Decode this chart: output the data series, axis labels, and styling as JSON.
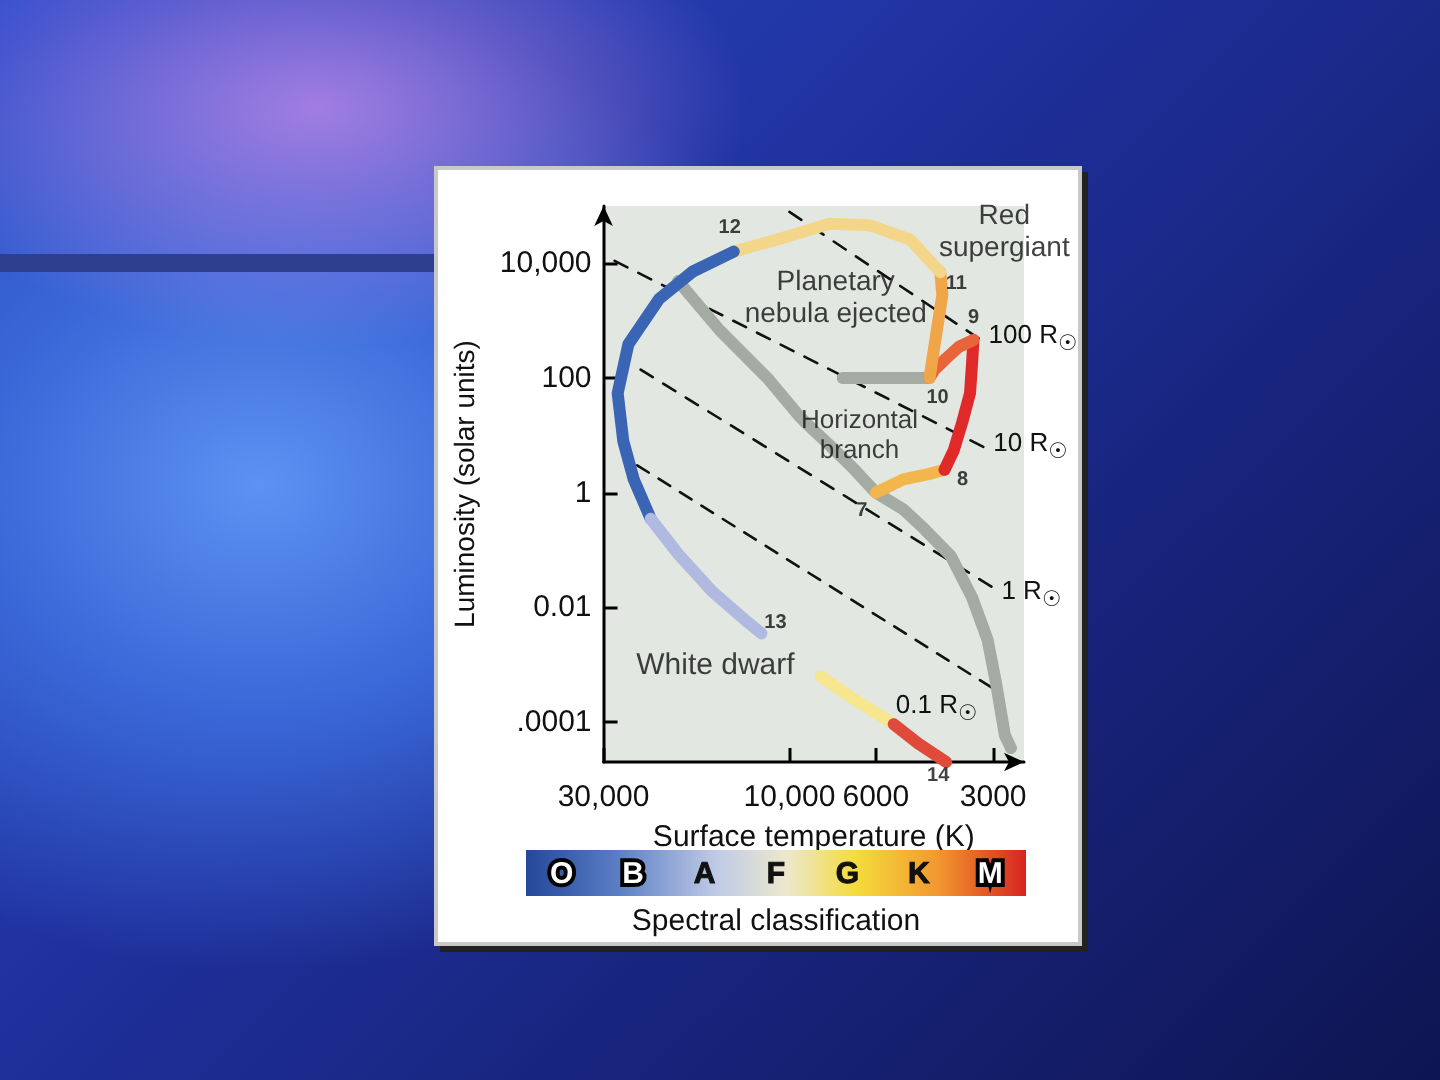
{
  "chart_data": {
    "type": "line",
    "xlabel": "Surface temperature (K)",
    "ylabel": "Luminosity (solar units)",
    "log": "xy",
    "xlim": [
      30000,
      2500
    ],
    "ylim": [
      2e-05,
      100000
    ],
    "xticks": [
      {
        "value": 30000,
        "label": "30,000"
      },
      {
        "value": 10000,
        "label": "10,000"
      },
      6000,
      3000
    ],
    "yticks": [
      {
        "value": 0.0001,
        "label": ".0001"
      },
      0.01,
      1,
      100,
      {
        "value": 10000,
        "label": "10,000"
      }
    ],
    "marker": "none",
    "series": [
      {
        "name": "100 R$_{☉}$",
        "color": "#111111",
        "line_style": "dashed",
        "x": [
          10000,
          3270
        ],
        "values": [
          79000,
          490
        ]
      },
      {
        "name": "10 R$_{☉}$",
        "color": "#111111",
        "line_style": "dashed",
        "x": [
          28100,
          3180
        ],
        "values": [
          11000,
          6.3
        ]
      },
      {
        "name": "1 R$_{☉}$",
        "color": "#111111",
        "line_style": "dashed",
        "x": [
          24100,
          3030
        ],
        "values": [
          140,
          0.023
        ]
      },
      {
        "name": "0.1 R$_{☉}$",
        "color": "#111111",
        "line_style": "dashed",
        "x": [
          24600,
          3030
        ],
        "values": [
          3,
          0.0004
        ]
      },
      {
        "color": "#a3aba3",
        "x": [
          19300,
          15100,
          11400,
          9400,
          8950,
          7900,
          6800,
          6000,
          5100,
          4500,
          3850,
          3400,
          3100,
          2950,
          2800,
          2700
        ],
        "values": [
          4900,
          680,
          100,
          21,
          15,
          6.8,
          2.5,
          1,
          0.51,
          0.23,
          0.078,
          0.015,
          0.0027,
          0.00048,
          5.9e-05,
          3.5e-05
        ]
      },
      {
        "color": "#a3aba3",
        "x": [
          7300,
          4370
        ],
        "values": [
          100,
          100
        ]
      },
      {
        "color": "#f2b64c",
        "x": [
          6000,
          5100,
          4400,
          4000
        ],
        "values": [
          1,
          1.7,
          2.1,
          2.5
        ]
      },
      {
        "color": "#e02a2a",
        "x": [
          4000,
          3790,
          3600,
          3440,
          3400,
          3370
        ],
        "values": [
          2.5,
          5.4,
          17,
          54,
          170,
          460
        ]
      },
      {
        "color": "#e8643a",
        "x": [
          3370,
          3670,
          3960,
          4240,
          4370
        ],
        "values": [
          460,
          350,
          220,
          140,
          100
        ]
      },
      {
        "color": "#f0a548",
        "x": [
          4370,
          4200,
          4050,
          4100
        ],
        "values": [
          100,
          580,
          2800,
          7000
        ]
      },
      {
        "color": "#f3d68a",
        "x": [
          4100,
          4900,
          6200,
          7900,
          10000,
          13900
        ],
        "values": [
          7000,
          26000,
          46000,
          49000,
          30000,
          16000
        ]
      },
      {
        "color": "#3a64b4",
        "x": [
          13900,
          17700,
          21600,
          25900,
          27600,
          26700,
          25100,
          22700
        ],
        "values": [
          16000,
          7200,
          2400,
          390,
          54,
          7.9,
          1.7,
          0.35
        ]
      },
      {
        "color": "#b0bae0",
        "x": [
          22700,
          19300,
          15800,
          12800,
          11800
        ],
        "values": [
          0.35,
          0.085,
          0.019,
          0.0055,
          0.0035
        ]
      },
      {
        "color": "#f6e68e",
        "x": [
          8300,
          6900,
          5400
        ],
        "values": [
          0.00062,
          0.00026,
          9.1e-05
        ]
      },
      {
        "color": "#e04a3a",
        "x": [
          5400,
          4670,
          3960
        ],
        "values": [
          9.1e-05,
          4.2e-05,
          2e-05
        ]
      }
    ],
    "annotations": [
      {
        "text": "Red\nsupergiant",
        "x": 4100,
        "y": 7000
      },
      {
        "text": "Planetary\nnebula ejected",
        "x": 13900,
        "y": 16000
      },
      {
        "text": "Horizontal\nbranch",
        "x": 4370,
        "y": 100
      },
      {
        "text": "White dwarf",
        "x": 11800,
        "y": 0.0035
      },
      {
        "text": "7",
        "x": 6000,
        "y": 1
      },
      {
        "text": "8",
        "x": 4000,
        "y": 2.5
      },
      {
        "text": "9",
        "x": 3370,
        "y": 460
      },
      {
        "text": "10",
        "x": 4370,
        "y": 100
      },
      {
        "text": "11",
        "x": 4100,
        "y": 7000
      },
      {
        "text": "12",
        "x": 13900,
        "y": 16000
      },
      {
        "text": "13",
        "x": 11800,
        "y": 0.0035
      },
      {
        "text": "14",
        "x": 3960,
        "y": 2e-05
      },
      "O",
      "B",
      "A",
      "F",
      "G",
      "K",
      "M",
      "Spectral classification"
    ]
  }
}
